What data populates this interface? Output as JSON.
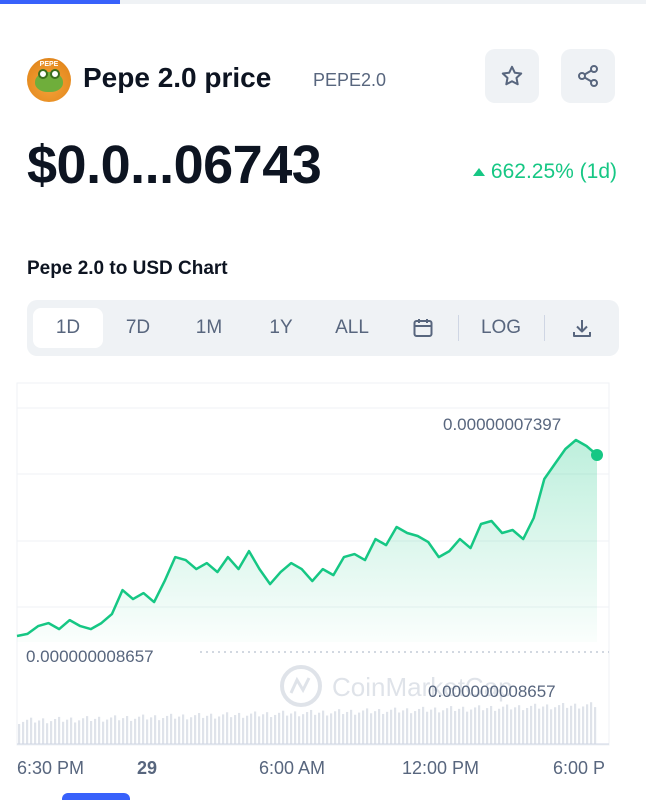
{
  "progress": 0.186,
  "coin": {
    "logo_text": "PEPE",
    "name": "Pepe 2.0 price",
    "symbol": "PEPE2.0",
    "price": "$0.0...06743",
    "change": "662.25% (1d)",
    "change_color": "#16c784"
  },
  "actions": {
    "star_icon": "star-icon",
    "share_icon": "share-icon"
  },
  "chart_title": "Pepe 2.0 to USD Chart",
  "tabs": [
    {
      "label": "1D",
      "active": true
    },
    {
      "label": "7D",
      "active": false
    },
    {
      "label": "1M",
      "active": false
    },
    {
      "label": "1Y",
      "active": false
    },
    {
      "label": "ALL",
      "active": false
    }
  ],
  "tools": {
    "calendar_icon": "calendar-icon",
    "log_label": "LOG",
    "download_icon": "download-icon"
  },
  "chart_data": {
    "type": "area",
    "title": "",
    "xlabel": "",
    "ylabel": "",
    "x_ticks": [
      "6:30 PM",
      "29",
      "6:00 AM",
      "12:00 PM",
      "6:00 P"
    ],
    "high_label": "0.00000007397",
    "low_label": "0.000000008657",
    "volume_label": "0.000000008657",
    "watermark": "CoinMarketCap",
    "ylim": [
      6e-09,
      8e-08
    ],
    "line_color": "#16c784",
    "grid": true,
    "series": [
      {
        "values": [
          8.7e-09,
          9.4e-09,
          1.2e-08,
          1.3e-08,
          1.1e-08,
          1.4e-08,
          1.2e-08,
          1.1e-08,
          1.3e-08,
          1.6e-08,
          2.4e-08,
          2.1e-08,
          2.3e-08,
          2e-08,
          2.7e-08,
          3.5e-08,
          3.4e-08,
          3.1e-08,
          3.3e-08,
          3e-08,
          3.5e-08,
          3.1e-08,
          3.7e-08,
          3.1e-08,
          2.6e-08,
          3e-08,
          3.3e-08,
          3.1e-08,
          2.7e-08,
          3.1e-08,
          2.9e-08,
          3.5e-08,
          3.6e-08,
          3.4e-08,
          4.1e-08,
          3.9e-08,
          4.5e-08,
          4.3e-08,
          4.2e-08,
          4e-08,
          3.5e-08,
          3.7e-08,
          4.1e-08,
          3.8e-08,
          4.6e-08,
          4.7e-08,
          4.3e-08,
          4.4e-08,
          4.1e-08,
          4.8e-08,
          6.1e-08,
          6.6e-08,
          7.1e-08,
          7.4e-08,
          7.2e-08,
          6.9e-08
        ]
      }
    ]
  }
}
